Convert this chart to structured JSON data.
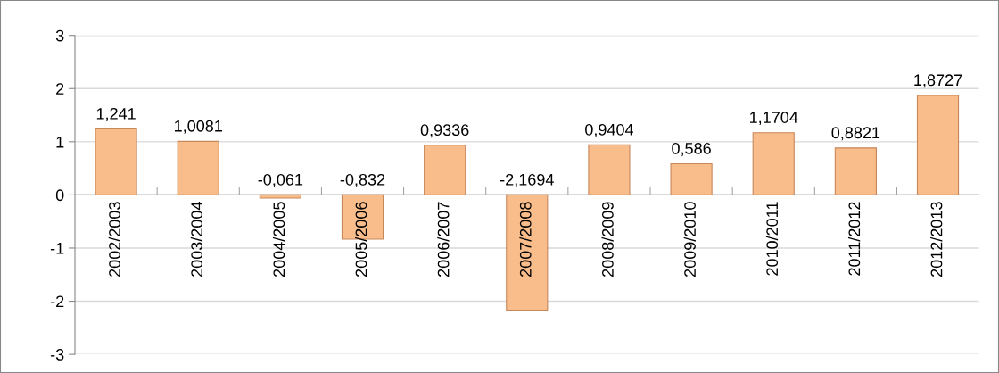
{
  "chart_data": {
    "type": "bar",
    "categories": [
      "2002/2003",
      "2003/2004",
      "2004/2005",
      "2005/2006",
      "2006/2007",
      "2007/2008",
      "2008/2009",
      "2009/2010",
      "2010/2011",
      "2011/2012",
      "2012/2013"
    ],
    "values": [
      1.241,
      1.0081,
      -0.061,
      -0.832,
      0.9336,
      -2.1694,
      0.9404,
      0.586,
      1.1704,
      0.8821,
      1.8727
    ],
    "value_labels": [
      "1,241",
      "1,0081",
      "-0,061",
      "-0,832",
      "0,9336",
      "-2,1694",
      "0,9404",
      "0,586",
      "1,1704",
      "0,8821",
      "1,8727"
    ],
    "color": "#f9bd8c",
    "ylim": [
      -3,
      3
    ],
    "yticks": [
      -3,
      -2,
      -1,
      0,
      1,
      2,
      3
    ],
    "grid": "y"
  }
}
